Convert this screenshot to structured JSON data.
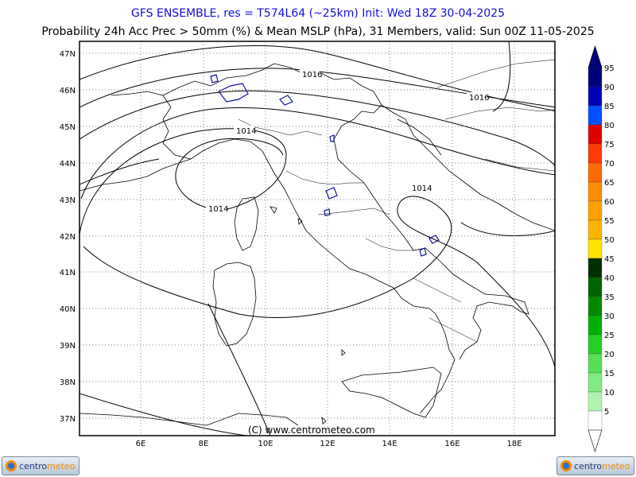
{
  "header": {
    "title_line1": "GFS ENSEMBLE, res = T574L64 (~25km)    Init: Wed 18Z 30-04-2025",
    "title_line2": "Probability 24h Acc Prec > 50mm (%) & Mean MSLP (hPa), 31 Members, valid: Sun 00Z 11-05-2025"
  },
  "map": {
    "lon_labels": [
      "6E",
      "8E",
      "10E",
      "12E",
      "14E",
      "16E",
      "18E"
    ],
    "lat_labels": [
      "47N",
      "46N",
      "45N",
      "44N",
      "43N",
      "42N",
      "41N",
      "40N",
      "39N",
      "38N",
      "37N"
    ],
    "isobar_labels": [
      "1016",
      "1016",
      "1014",
      "1014",
      "1014"
    ],
    "copyright": "(C) www.centrometeo.com"
  },
  "colorbar": {
    "levels": [
      {
        "label": "95",
        "color": "#00007a"
      },
      {
        "label": "90",
        "color": "#0000b8"
      },
      {
        "label": "85",
        "color": "#0050ff"
      },
      {
        "label": "80",
        "color": "#e00000"
      },
      {
        "label": "75",
        "color": "#ff3a00"
      },
      {
        "label": "70",
        "color": "#ff6a00"
      },
      {
        "label": "65",
        "color": "#ff8c00"
      },
      {
        "label": "60",
        "color": "#ffa000"
      },
      {
        "label": "55",
        "color": "#ffb400"
      },
      {
        "label": "50",
        "color": "#ffe400"
      },
      {
        "label": "45",
        "color": "#003000"
      },
      {
        "label": "40",
        "color": "#006400"
      },
      {
        "label": "35",
        "color": "#008a00"
      },
      {
        "label": "30",
        "color": "#00b000"
      },
      {
        "label": "25",
        "color": "#22d022"
      },
      {
        "label": "20",
        "color": "#55e055"
      },
      {
        "label": "15",
        "color": "#80ec80"
      },
      {
        "label": "10",
        "color": "#b0f4b0"
      },
      {
        "label": "5",
        "color": "#ffffff"
      }
    ]
  },
  "logos": {
    "left": {
      "brand_a": "centro",
      "brand_b": "meteo"
    },
    "right": {
      "brand_a": "centro",
      "brand_b": "meteo"
    }
  }
}
